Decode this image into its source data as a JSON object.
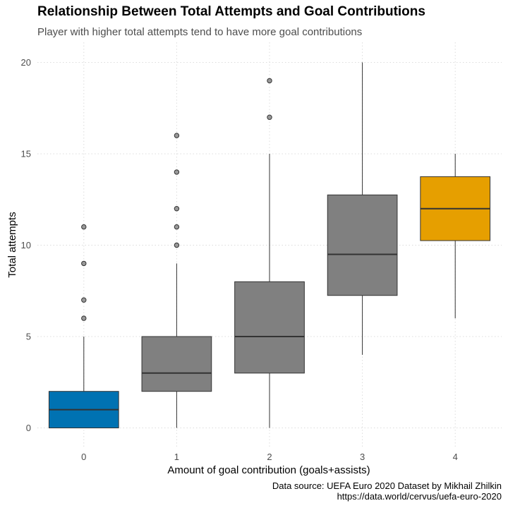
{
  "chart_data": {
    "type": "boxplot",
    "title": "Relationship Between Total Attempts and Goal Contributions",
    "subtitle": "Player with higher total attempts tend to have more goal contributions",
    "xlabel": "Amount of goal contribution (goals+assists)",
    "ylabel": "Total attempts",
    "caption_lines": [
      "Data source: UEFA Euro 2020 Dataset by Mikhail Zhilkin",
      "https://data.world/cervus/uefa-euro-2020"
    ],
    "ylim": [
      -0.6,
      20.6
    ],
    "y_ticks": [
      0,
      5,
      10,
      15,
      20
    ],
    "grid": true,
    "legend": "none",
    "categories": [
      "0",
      "1",
      "2",
      "3",
      "4"
    ],
    "boxes": [
      {
        "category": "0",
        "min": 0,
        "q1": 0,
        "median": 1,
        "q3": 2,
        "max": 5,
        "outliers": [
          6,
          7,
          9,
          11
        ],
        "color": "#0072B2"
      },
      {
        "category": "1",
        "min": 0,
        "q1": 2,
        "median": 3,
        "q3": 5,
        "max": 9,
        "outliers": [
          10,
          11,
          12,
          14,
          16
        ],
        "color": "#808080"
      },
      {
        "category": "2",
        "min": 0,
        "q1": 3,
        "median": 5,
        "q3": 8,
        "max": 15,
        "outliers": [
          17,
          19
        ],
        "color": "#808080"
      },
      {
        "category": "3",
        "min": 4,
        "q1": 7.25,
        "median": 9.5,
        "q3": 12.75,
        "max": 20,
        "outliers": [],
        "color": "#808080"
      },
      {
        "category": "4",
        "min": 6,
        "q1": 10.25,
        "median": 12,
        "q3": 13.75,
        "max": 15,
        "outliers": [],
        "color": "#E69F00"
      }
    ]
  }
}
